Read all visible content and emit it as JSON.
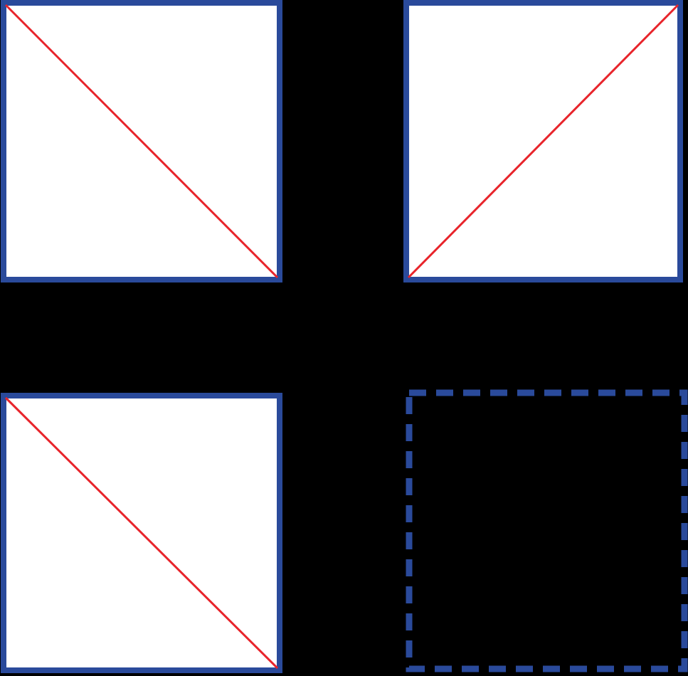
{
  "figure": {
    "background": "#000000",
    "frame_color": "#2a4a9b",
    "fill_color": "#ffffff",
    "diagonal_color": "#e8242b",
    "panels": [
      {
        "id": "top-left",
        "diagonal": "down",
        "border": "solid",
        "filled": true
      },
      {
        "id": "top-right",
        "diagonal": "up",
        "border": "solid",
        "filled": true
      },
      {
        "id": "bottom-left",
        "diagonal": "down",
        "border": "solid",
        "filled": true
      },
      {
        "id": "bottom-right",
        "diagonal": "none",
        "border": "dashed",
        "filled": false
      }
    ]
  }
}
